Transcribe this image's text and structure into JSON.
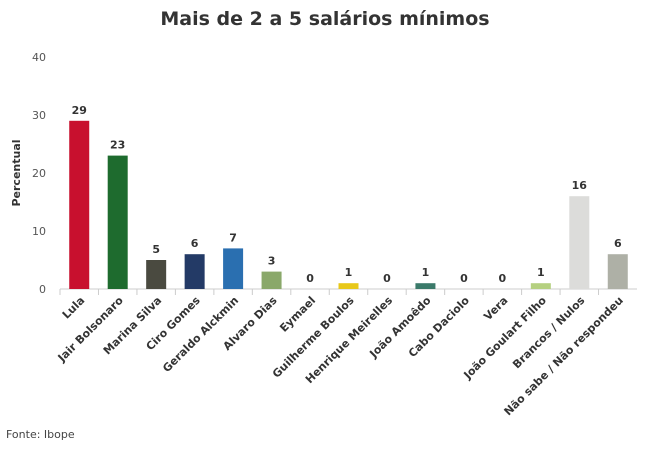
{
  "chart_data": {
    "type": "bar",
    "title": "Mais de 2 a 5 salários mínimos",
    "xlabel": "",
    "ylabel": "Percentual",
    "ylim": [
      0,
      40
    ],
    "yticks": [
      0,
      10,
      20,
      30,
      40
    ],
    "grid": false,
    "categories": [
      "Lula",
      "Jair Bolsonaro",
      "Marina Silva",
      "Ciro Gomes",
      "Geraldo Alckmin",
      "Alvaro Dias",
      "Eymael",
      "Guilherme Boulos",
      "Henrique Meirelles",
      "João Amoêdo",
      "Cabo Daciolo",
      "Vera",
      "João Goulart Filho",
      "Brancos / Nulos",
      "Não sabe / Não respondeu"
    ],
    "values": [
      29,
      23,
      5,
      6,
      7,
      3,
      0,
      1,
      0,
      1,
      0,
      0,
      1,
      16,
      6
    ],
    "colors": [
      "#c8102e",
      "#1e6b2e",
      "#4a4a40",
      "#233a66",
      "#2a6fb0",
      "#8aa86a",
      "#cccccc",
      "#e8c81a",
      "#cccccc",
      "#3b7a6a",
      "#cccccc",
      "#cccccc",
      "#b5d080",
      "#dcdcda",
      "#aeb0a6"
    ]
  },
  "source": "Fonte: Ibope"
}
